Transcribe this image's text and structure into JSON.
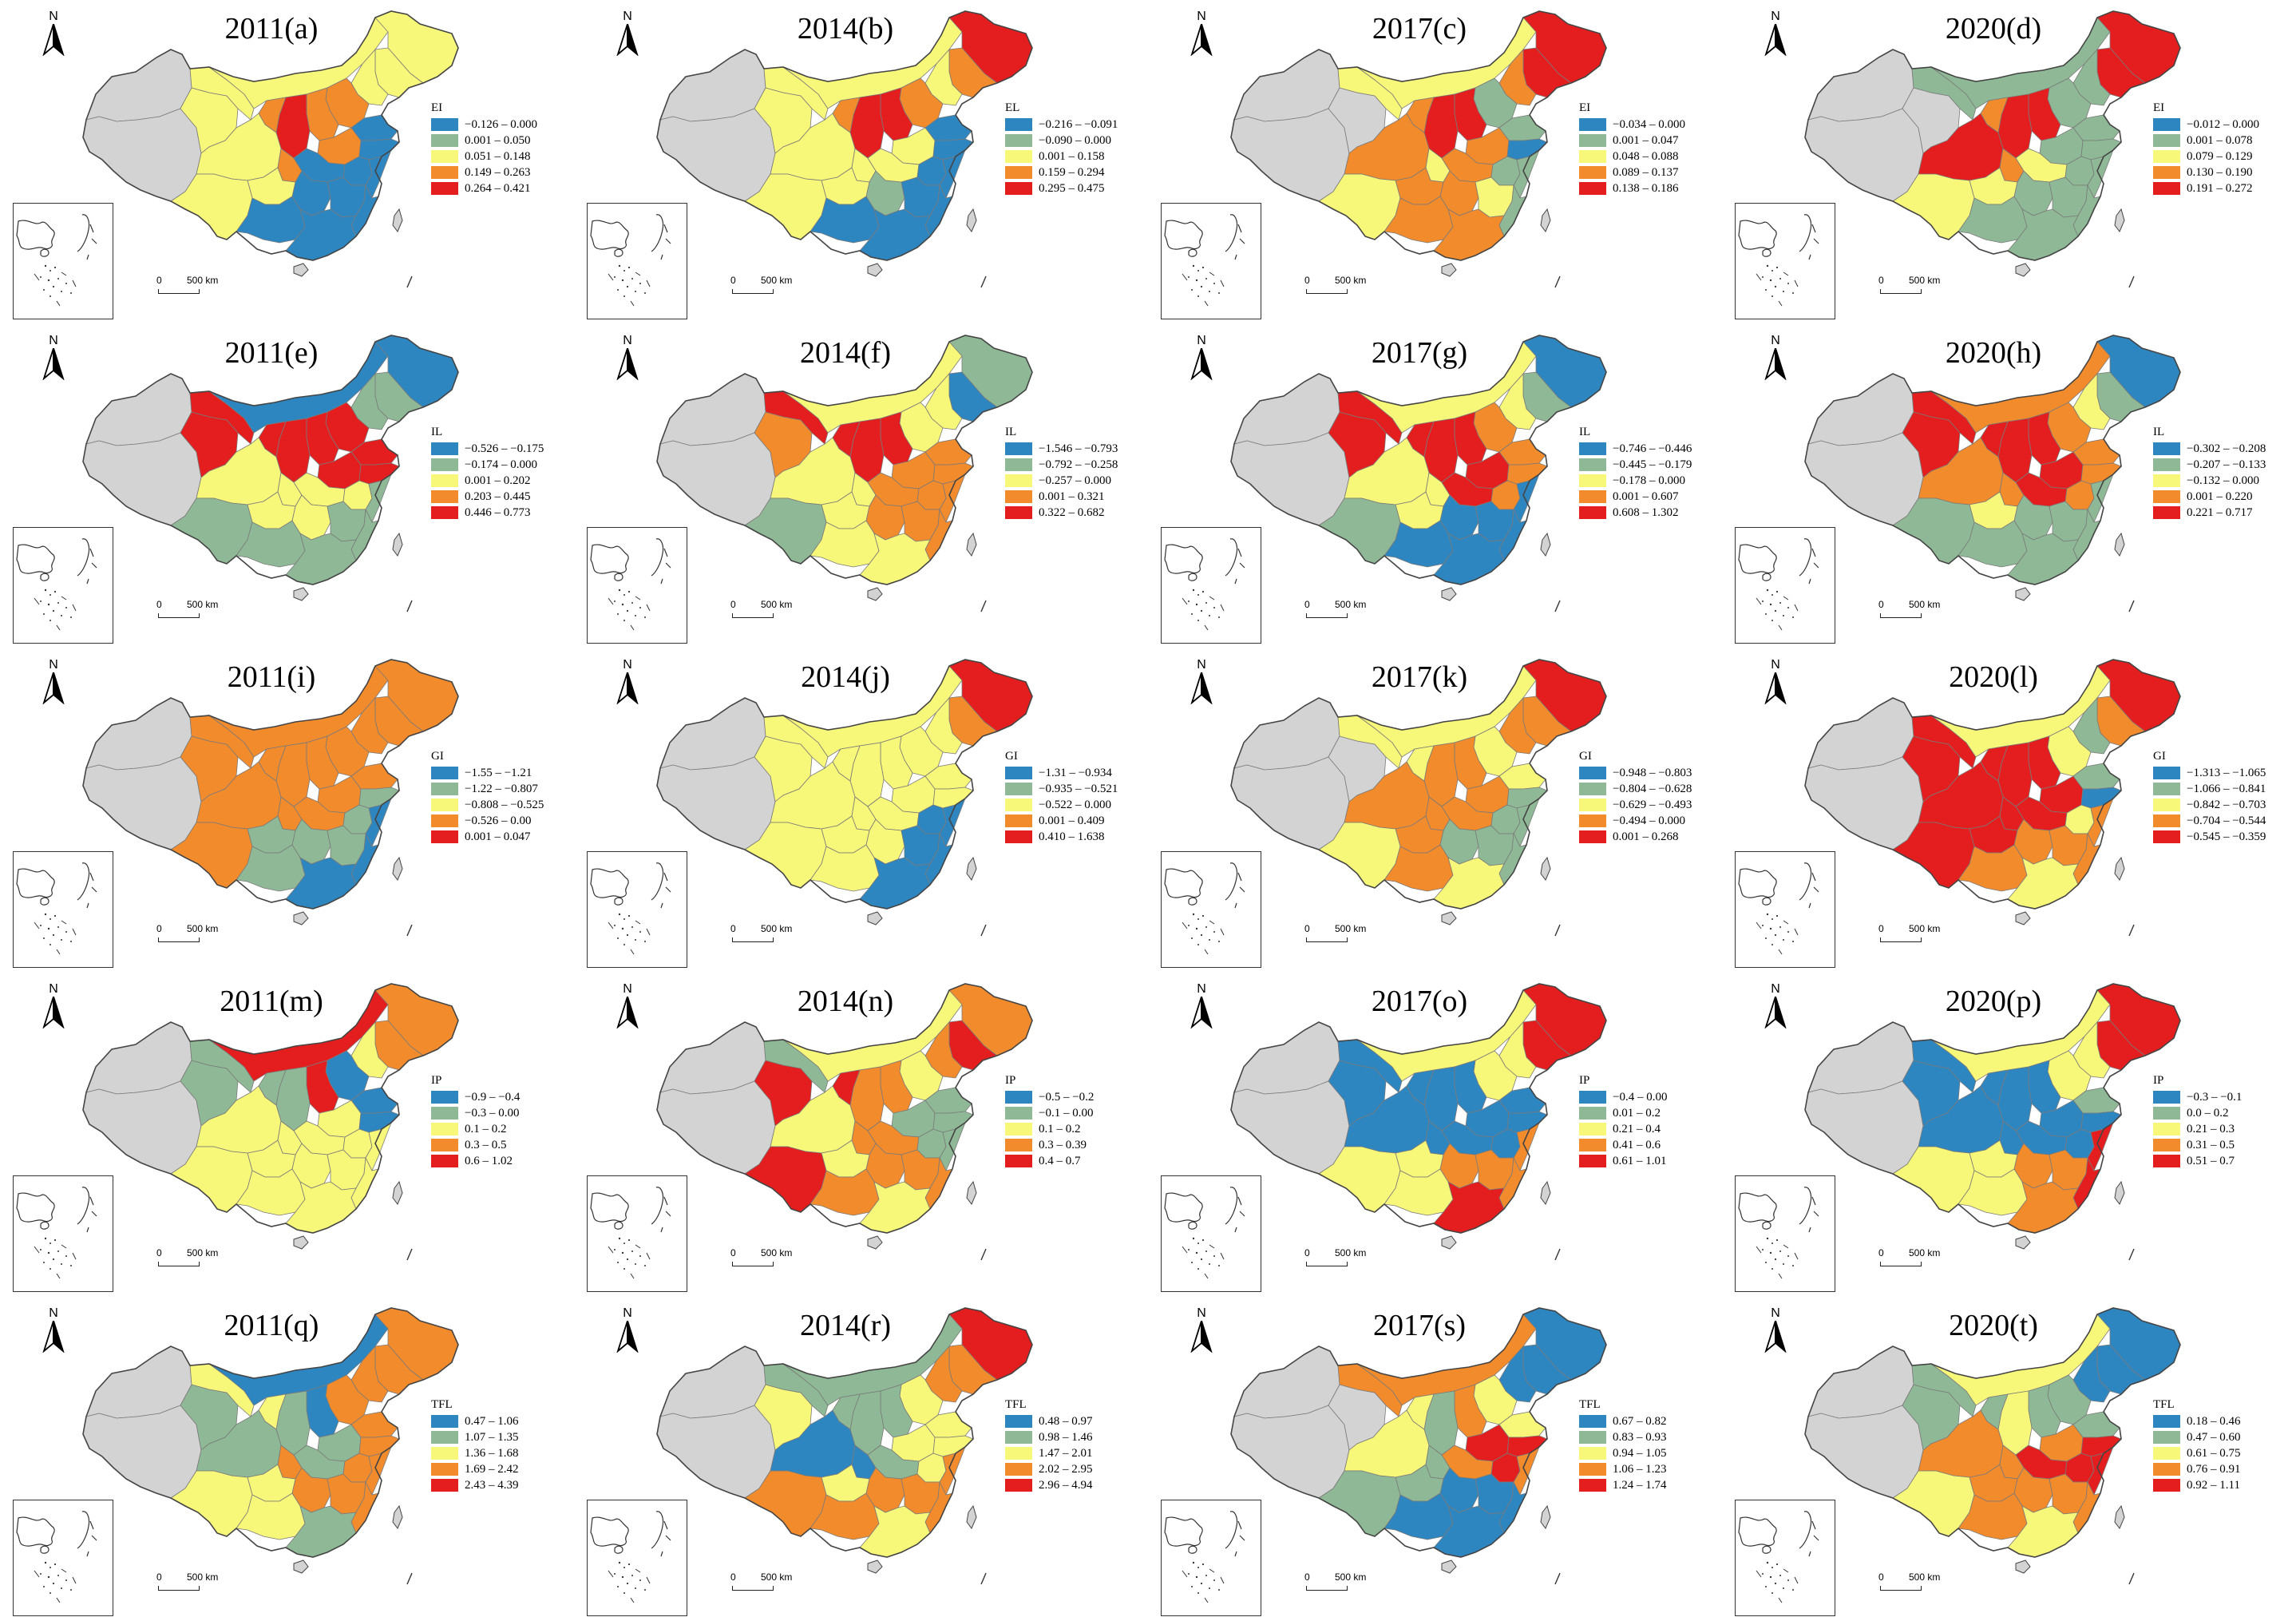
{
  "figure": {
    "north_label": "N",
    "scale_zero": "0",
    "scale_distance": "500 km"
  },
  "colors": {
    "c1": "#2e86c1",
    "c2": "#8fb996",
    "c3": "#f7f779",
    "c4": "#f28b2c",
    "c5": "#e41e1e",
    "no_data": "#d3d3d3",
    "boundary": "#7a7a7a"
  },
  "panels": [
    {
      "title": "2011(a)",
      "indicator": "EI",
      "classes": [
        "−0.126 – 0.000",
        "0.001 – 0.050",
        "0.051 – 0.148",
        "0.149 – 0.263",
        "0.264 – 0.421"
      ]
    },
    {
      "title": "2014(b)",
      "indicator": "EL",
      "classes": [
        "−0.216 – −0.091",
        "−0.090 – 0.000",
        "0.001 – 0.158",
        "0.159 – 0.294",
        "0.295 – 0.475"
      ]
    },
    {
      "title": "2017(c)",
      "indicator": "EI",
      "classes": [
        "−0.034 – 0.000",
        "0.001 – 0.047",
        "0.048 – 0.088",
        "0.089 – 0.137",
        "0.138 – 0.186"
      ]
    },
    {
      "title": "2020(d)",
      "indicator": "EI",
      "classes": [
        "−0.012 – 0.000",
        "0.001 – 0.078",
        "0.079 – 0.129",
        "0.130 – 0.190",
        "0.191 – 0.272"
      ]
    },
    {
      "title": "2011(e)",
      "indicator": "IL",
      "classes": [
        "−0.526 – −0.175",
        "−0.174 – 0.000",
        "0.001 – 0.202",
        "0.203 – 0.445",
        "0.446 – 0.773"
      ]
    },
    {
      "title": "2014(f)",
      "indicator": "IL",
      "classes": [
        "−1.546 – −0.793",
        "−0.792 – −0.258",
        "−0.257 – 0.000",
        "0.001 – 0.321",
        "0.322 – 0.682"
      ]
    },
    {
      "title": "2017(g)",
      "indicator": "IL",
      "classes": [
        "−0.746 – −0.446",
        "−0.445 – −0.179",
        "−0.178 – 0.000",
        "0.001 – 0.607",
        "0.608 – 1.302"
      ]
    },
    {
      "title": "2020(h)",
      "indicator": "IL",
      "classes": [
        "−0.302 – −0.208",
        "−0.207 – −0.133",
        "−0.132 – 0.000",
        "0.001 – 0.220",
        "0.221 – 0.717"
      ]
    },
    {
      "title": "2011(i)",
      "indicator": "GI",
      "classes": [
        "−1.55 – −1.21",
        "−1.22 – −0.807",
        "−0.808 – −0.525",
        "−0.526 – 0.00",
        "0.001 – 0.047"
      ]
    },
    {
      "title": "2014(j)",
      "indicator": "GI",
      "classes": [
        "−1.31 – −0.934",
        "−0.935 – −0.521",
        "−0.522 – 0.000",
        "0.001 – 0.409",
        "0.410 – 1.638"
      ]
    },
    {
      "title": "2017(k)",
      "indicator": "GI",
      "classes": [
        "−0.948 – −0.803",
        "−0.804 – −0.628",
        "−0.629 – −0.493",
        "−0.494 – 0.000",
        "0.001 – 0.268"
      ]
    },
    {
      "title": "2020(l)",
      "indicator": "GI",
      "classes": [
        "−1.313 – −1.065",
        "−1.066 – −0.841",
        "−0.842 – −0.703",
        "−0.704 – −0.544",
        "−0.545 – −0.359"
      ]
    },
    {
      "title": "2011(m)",
      "indicator": "IP",
      "classes": [
        "−0.9 – −0.4",
        "−0.3 – 0.00",
        "0.1 – 0.2",
        "0.3 – 0.5",
        "0.6 – 1.02"
      ]
    },
    {
      "title": "2014(n)",
      "indicator": "IP",
      "classes": [
        "−0.5 – −0.2",
        "−0.1 – 0.00",
        "0.1 – 0.2",
        "0.3 – 0.39",
        "0.4 – 0.7"
      ]
    },
    {
      "title": "2017(o)",
      "indicator": "IP",
      "classes": [
        "−0.4 – 0.00",
        "0.01 – 0.2",
        "0.21 – 0.4",
        "0.41 – 0.6",
        "0.61 – 1.01"
      ]
    },
    {
      "title": "2020(p)",
      "indicator": "IP",
      "classes": [
        "−0.3 – −0.1",
        "0.0 – 0.2",
        "0.21 – 0.3",
        "0.31 – 0.5",
        "0.51 – 0.7"
      ]
    },
    {
      "title": "2011(q)",
      "indicator": "TFL",
      "classes": [
        "0.47 – 1.06",
        "1.07 – 1.35",
        "1.36 – 1.68",
        "1.69 – 2.42",
        "2.43 – 4.39"
      ]
    },
    {
      "title": "2014(r)",
      "indicator": "TFL",
      "classes": [
        "0.48 – 0.97",
        "0.98 – 1.46",
        "1.47 – 2.01",
        "2.02 – 2.95",
        "2.96 – 4.94"
      ]
    },
    {
      "title": "2017(s)",
      "indicator": "TFL",
      "classes": [
        "0.67 – 0.82",
        "0.83 – 0.93",
        "0.94 – 1.05",
        "1.06 – 1.23",
        "1.24 – 1.74"
      ]
    },
    {
      "title": "2020(t)",
      "indicator": "TFL",
      "classes": [
        "0.18 – 0.46",
        "0.47 – 0.60",
        "0.61 – 0.75",
        "0.76 – 0.91",
        "0.92 – 1.11"
      ]
    }
  ]
}
